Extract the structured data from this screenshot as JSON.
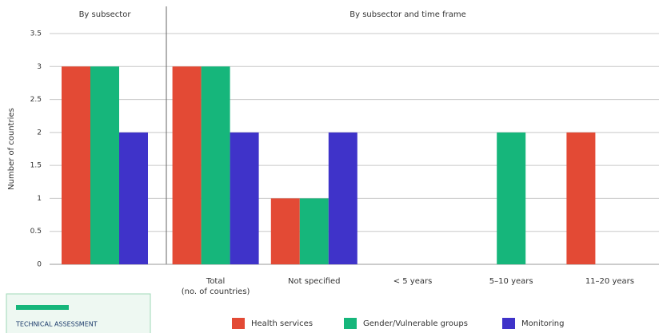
{
  "chart_data": [
    {
      "type": "bar",
      "title": "By subsector",
      "y_label": "Number of countries",
      "categories": [
        null
      ],
      "series": [
        {
          "color": "#e34a35",
          "values": [
            3
          ]
        },
        {
          "color": "#16b67b",
          "values": [
            3
          ]
        },
        {
          "color": "#3f33c9",
          "values": [
            2
          ]
        }
      ],
      "ylim": [
        0,
        3.5
      ],
      "yticks": [
        0,
        0.5,
        1,
        1.5,
        2,
        2.5,
        3,
        3.5
      ],
      "grid": true
    },
    {
      "type": "bar",
      "title": "By subsector and time frame",
      "categories": [
        "Total\n(no. of countries)",
        "Not specified",
        "< 5 years",
        "5–10 years",
        "11–20 years"
      ],
      "series": [
        {
          "name": "Health services",
          "color": "#e34a35",
          "values": [
            3,
            1,
            0,
            0,
            2
          ]
        },
        {
          "name": "Gender/Vulnerable groups",
          "color": "#16b67b",
          "values": [
            3,
            1,
            0,
            2,
            0
          ]
        },
        {
          "name": "Monitoring",
          "color": "#3f33c9",
          "values": [
            2,
            2,
            0,
            0,
            0
          ]
        }
      ],
      "ylim": [
        0,
        3.5
      ],
      "grid": true
    }
  ],
  "document_thumbnail": {
    "title": "TECHNICAL ASSESSMENT"
  }
}
